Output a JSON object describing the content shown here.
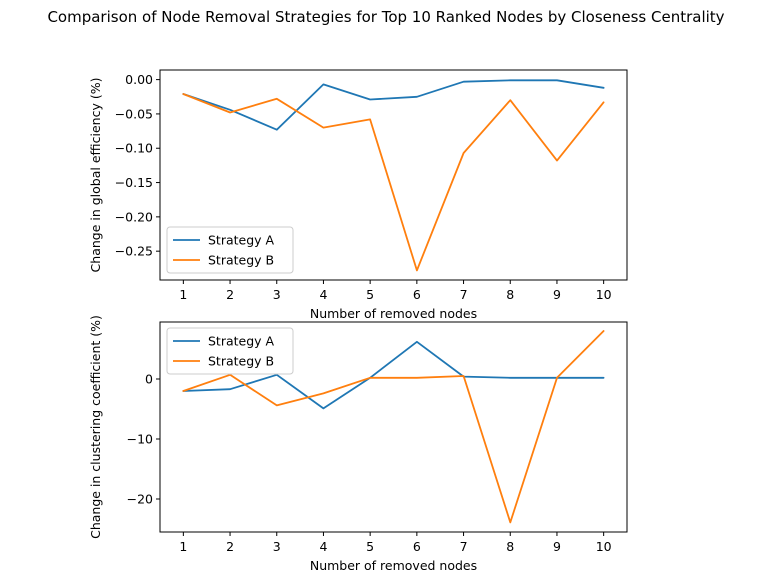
{
  "chart_data": [
    {
      "type": "line",
      "title": "Comparison of Node Removal Strategies for Top 10 Ranked Nodes by Closeness Centrality",
      "xlabel": "Number of removed nodes",
      "ylabel": "Change in global efficiency (%)",
      "x": [
        1,
        2,
        3,
        4,
        5,
        6,
        7,
        8,
        9,
        10
      ],
      "xlim": [
        0.5,
        10.5
      ],
      "ylim": [
        -0.292,
        0.014
      ],
      "yticks": [
        0.0,
        -0.05,
        -0.1,
        -0.15,
        -0.2,
        -0.25
      ],
      "ytick_labels": [
        "0.00",
        "−0.05",
        "−0.10",
        "−0.15",
        "−0.20",
        "−0.25"
      ],
      "grid": false,
      "legend_position": "lower-left",
      "series": [
        {
          "name": "Strategy A",
          "color": "#1f77b4",
          "values": [
            -0.021,
            -0.044,
            -0.073,
            -0.007,
            -0.029,
            -0.025,
            -0.003,
            -0.001,
            -0.001,
            -0.012
          ]
        },
        {
          "name": "Strategy B",
          "color": "#ff7f0e",
          "values": [
            -0.021,
            -0.048,
            -0.028,
            -0.07,
            -0.058,
            -0.278,
            -0.107,
            -0.03,
            -0.118,
            -0.033
          ]
        }
      ]
    },
    {
      "type": "line",
      "xlabel": "Number of removed nodes",
      "ylabel": "Change in clustering coefficient (%)",
      "x": [
        1,
        2,
        3,
        4,
        5,
        6,
        7,
        8,
        9,
        10
      ],
      "xlim": [
        0.5,
        10.5
      ],
      "ylim": [
        -25.5,
        9.5
      ],
      "yticks": [
        0,
        -10,
        -20
      ],
      "ytick_labels": [
        "0",
        "−10",
        "−20"
      ],
      "grid": false,
      "legend_position": "upper-left",
      "series": [
        {
          "name": "Strategy A",
          "color": "#1f77b4",
          "values": [
            -2.0,
            -1.7,
            0.7,
            -4.9,
            0.2,
            6.2,
            0.4,
            0.2,
            0.2,
            0.2
          ]
        },
        {
          "name": "Strategy B",
          "color": "#ff7f0e",
          "values": [
            -2.0,
            0.7,
            -4.4,
            -2.4,
            0.2,
            0.2,
            0.5,
            -23.9,
            0.2,
            8.0
          ]
        }
      ]
    }
  ]
}
